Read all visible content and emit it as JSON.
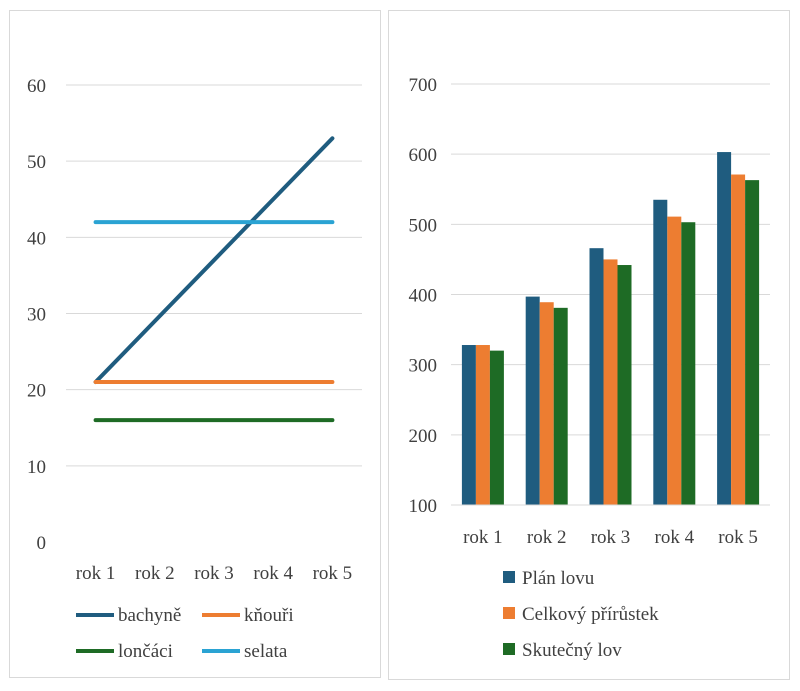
{
  "chart_data": [
    {
      "type": "line",
      "categories": [
        "rok 1",
        "rok 2",
        "rok 3",
        "rok 4",
        "rok 5"
      ],
      "ylim": [
        0,
        60
      ],
      "yticks": [
        0,
        10,
        20,
        30,
        40,
        50,
        60
      ],
      "grid": true,
      "legend_position": "bottom",
      "series": [
        {
          "name": "bachyně",
          "color": "#1f5c7f",
          "values": [
            21,
            29,
            37,
            45,
            53
          ]
        },
        {
          "name": "kňouři",
          "color": "#ed7d31",
          "values": [
            21,
            21,
            21,
            21,
            21
          ]
        },
        {
          "name": "lončáci",
          "color": "#1e6b25",
          "values": [
            16,
            16,
            16,
            16,
            16
          ]
        },
        {
          "name": "selata",
          "color": "#2aa3d3",
          "values": [
            42,
            42,
            42,
            42,
            42
          ]
        }
      ]
    },
    {
      "type": "bar",
      "categories": [
        "rok 1",
        "rok 2",
        "rok 3",
        "rok 4",
        "rok 5"
      ],
      "ylim": [
        100,
        700
      ],
      "yticks": [
        100,
        200,
        300,
        400,
        500,
        600,
        700
      ],
      "grid": true,
      "legend_position": "bottom",
      "series": [
        {
          "name": "Plán lovu",
          "color": "#1f5c7f",
          "values": [
            328,
            397,
            466,
            535,
            603
          ]
        },
        {
          "name": "Celkový přírůstek",
          "color": "#ed7d31",
          "values": [
            328,
            389,
            450,
            511,
            571
          ]
        },
        {
          "name": "Skutečný lov",
          "color": "#1e6b25",
          "values": [
            320,
            381,
            442,
            503,
            563
          ]
        }
      ]
    }
  ]
}
